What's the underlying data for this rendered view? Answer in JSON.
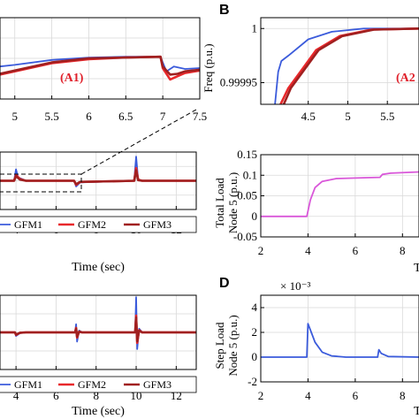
{
  "colors": {
    "gfm1": "#3b5bdb",
    "gfm2": "#e8282b",
    "gfm3": "#a02020",
    "load": "#d957d9",
    "step": "#3b5bdb"
  },
  "panel_labels": {
    "b": "B",
    "d": "D"
  },
  "chart_data": [
    {
      "id": "A1",
      "type": "line",
      "tag": "(A1)",
      "x": {
        "ticks": [
          "5",
          "5.5",
          "6",
          "6.5",
          "7",
          "7.5"
        ],
        "range": [
          4.8,
          7.5
        ]
      },
      "y": {
        "ticks": [],
        "range": [
          0,
          1
        ]
      },
      "grid": true,
      "series": [
        {
          "name": "GFM1",
          "points": [
            [
              4.8,
              0.4
            ],
            [
              5.0,
              0.42
            ],
            [
              5.5,
              0.48
            ],
            [
              6.0,
              0.51
            ],
            [
              6.5,
              0.52
            ],
            [
              6.97,
              0.52
            ],
            [
              7.0,
              0.45
            ],
            [
              7.05,
              0.34
            ],
            [
              7.15,
              0.4
            ],
            [
              7.3,
              0.37
            ],
            [
              7.5,
              0.38
            ]
          ]
        },
        {
          "name": "GFM2",
          "points": [
            [
              4.8,
              0.3
            ],
            [
              5.0,
              0.34
            ],
            [
              5.5,
              0.44
            ],
            [
              6.0,
              0.49
            ],
            [
              6.5,
              0.51
            ],
            [
              6.97,
              0.52
            ],
            [
              7.0,
              0.38
            ],
            [
              7.1,
              0.24
            ],
            [
              7.2,
              0.28
            ],
            [
              7.3,
              0.32
            ],
            [
              7.5,
              0.35
            ]
          ]
        },
        {
          "name": "GFM3",
          "points": [
            [
              4.8,
              0.31
            ],
            [
              5.0,
              0.35
            ],
            [
              5.5,
              0.45
            ],
            [
              6.0,
              0.5
            ],
            [
              6.5,
              0.51
            ],
            [
              6.97,
              0.52
            ],
            [
              7.0,
              0.4
            ],
            [
              7.1,
              0.3
            ],
            [
              7.2,
              0.31
            ],
            [
              7.3,
              0.34
            ],
            [
              7.5,
              0.36
            ]
          ]
        }
      ]
    },
    {
      "id": "A2",
      "type": "line",
      "tag": "(A2",
      "ylabel": "Freq (p.u.)",
      "x": {
        "ticks": [
          "4.5",
          "5",
          "5.5"
        ],
        "range": [
          3.9,
          5.9
        ]
      },
      "y": {
        "ticks": [
          "1",
          "0.99995"
        ],
        "tick_values": [
          1.0,
          0.99995
        ],
        "range": [
          0.99993,
          1.00001
        ]
      },
      "grid": true,
      "series": [
        {
          "name": "GFM1",
          "points": [
            [
              4.08,
              0.99993
            ],
            [
              4.12,
              0.99996
            ],
            [
              4.16,
              0.99997
            ],
            [
              4.25,
              0.999975
            ],
            [
              4.5,
              0.99999
            ],
            [
              4.8,
              0.999997
            ],
            [
              5.2,
              1.0
            ],
            [
              5.9,
              1.0
            ]
          ]
        },
        {
          "name": "GFM2",
          "points": [
            [
              4.15,
              0.99993
            ],
            [
              4.25,
              0.999945
            ],
            [
              4.4,
              0.99996
            ],
            [
              4.6,
              0.99998
            ],
            [
              4.9,
              0.999993
            ],
            [
              5.3,
              0.999999
            ],
            [
              5.9,
              1.0
            ]
          ]
        },
        {
          "name": "GFM3",
          "points": [
            [
              4.19,
              0.99993
            ],
            [
              4.28,
              0.999945
            ],
            [
              4.43,
              0.99996
            ],
            [
              4.63,
              0.99998
            ],
            [
              4.93,
              0.999993
            ],
            [
              5.33,
              0.999999
            ],
            [
              5.9,
              1.0
            ]
          ]
        }
      ]
    },
    {
      "id": "A",
      "type": "line",
      "xlabel": "Time (sec)",
      "x": {
        "ticks": [
          "4",
          "6",
          "8",
          "10",
          "12"
        ],
        "range": [
          3.2,
          13
        ]
      },
      "y": {
        "ticks": [],
        "range": [
          0,
          1
        ]
      },
      "grid": true,
      "legend": [
        "GFM1",
        "GFM2",
        "GFM3"
      ],
      "series": [
        {
          "name": "GFM1",
          "points": [
            [
              3.2,
              0.5
            ],
            [
              3.9,
              0.5
            ],
            [
              4.0,
              0.7
            ],
            [
              4.1,
              0.56
            ],
            [
              4.5,
              0.5
            ],
            [
              6.9,
              0.5
            ],
            [
              7.0,
              0.4
            ],
            [
              7.2,
              0.47
            ],
            [
              9.9,
              0.5
            ],
            [
              10.0,
              0.92
            ],
            [
              10.1,
              0.52
            ],
            [
              10.3,
              0.5
            ],
            [
              13,
              0.5
            ]
          ]
        },
        {
          "name": "GFM2",
          "points": [
            [
              3.2,
              0.5
            ],
            [
              3.9,
              0.5
            ],
            [
              4.0,
              0.6
            ],
            [
              4.2,
              0.53
            ],
            [
              4.5,
              0.5
            ],
            [
              6.9,
              0.5
            ],
            [
              7.0,
              0.43
            ],
            [
              7.2,
              0.48
            ],
            [
              9.9,
              0.5
            ],
            [
              10.0,
              0.72
            ],
            [
              10.1,
              0.52
            ],
            [
              10.3,
              0.5
            ],
            [
              13,
              0.5
            ]
          ]
        },
        {
          "name": "GFM3",
          "points": [
            [
              3.2,
              0.5
            ],
            [
              3.9,
              0.5
            ],
            [
              4.0,
              0.58
            ],
            [
              4.2,
              0.52
            ],
            [
              4.5,
              0.5
            ],
            [
              6.9,
              0.5
            ],
            [
              7.0,
              0.44
            ],
            [
              7.2,
              0.48
            ],
            [
              9.9,
              0.5
            ],
            [
              10.0,
              0.68
            ],
            [
              10.1,
              0.51
            ],
            [
              10.3,
              0.5
            ],
            [
              13,
              0.5
            ]
          ]
        }
      ]
    },
    {
      "id": "C",
      "type": "line",
      "ylabel_lines": [
        "Total Load",
        "Node 5 (p.u.)"
      ],
      "x": {
        "ticks": [
          "2",
          "4",
          "6",
          "8"
        ],
        "range": [
          2,
          8.7
        ]
      },
      "y": {
        "ticks": [
          "0.15",
          "0.1",
          "0.05",
          "0",
          "-0.05"
        ],
        "tick_values": [
          0.15,
          0.1,
          0.05,
          0,
          -0.05
        ],
        "range": [
          -0.05,
          0.15
        ]
      },
      "xlabel": "Tim",
      "grid": true,
      "series": [
        {
          "name": "load",
          "points": [
            [
              2,
              0
            ],
            [
              3.95,
              0
            ],
            [
              4.1,
              0.04
            ],
            [
              4.3,
              0.07
            ],
            [
              4.6,
              0.085
            ],
            [
              5.2,
              0.092
            ],
            [
              6.5,
              0.094
            ],
            [
              7.05,
              0.095
            ],
            [
              7.15,
              0.102
            ],
            [
              7.5,
              0.105
            ],
            [
              8.7,
              0.108
            ]
          ]
        }
      ]
    },
    {
      "id": "B",
      "type": "line",
      "xlabel": "Time (sec)",
      "x": {
        "ticks": [
          "4",
          "6",
          "8",
          "10",
          "12"
        ],
        "range": [
          3.2,
          13
        ]
      },
      "y": {
        "ticks": [],
        "range": [
          -1,
          1
        ]
      },
      "grid": true,
      "legend": [
        "GFM1",
        "GFM2",
        "GFM3"
      ],
      "series": [
        {
          "name": "GFM1",
          "points": [
            [
              3.2,
              0.0
            ],
            [
              3.95,
              0.0
            ],
            [
              4.0,
              -0.1
            ],
            [
              4.2,
              -0.02
            ],
            [
              4.5,
              0.0
            ],
            [
              6.95,
              0.0
            ],
            [
              7.0,
              0.22
            ],
            [
              7.05,
              -0.25
            ],
            [
              7.15,
              0.05
            ],
            [
              7.3,
              0.0
            ],
            [
              9.95,
              0.0
            ],
            [
              10.0,
              0.95
            ],
            [
              10.05,
              -0.45
            ],
            [
              10.15,
              0.1
            ],
            [
              10.3,
              0.0
            ],
            [
              13,
              0.0
            ]
          ]
        },
        {
          "name": "GFM2",
          "points": [
            [
              3.2,
              0.0
            ],
            [
              3.95,
              0.0
            ],
            [
              4.0,
              -0.07
            ],
            [
              4.2,
              -0.01
            ],
            [
              4.5,
              0.0
            ],
            [
              6.95,
              0.0
            ],
            [
              7.0,
              0.12
            ],
            [
              7.05,
              -0.14
            ],
            [
              7.15,
              0.02
            ],
            [
              7.3,
              0.0
            ],
            [
              9.95,
              0.0
            ],
            [
              10.0,
              0.45
            ],
            [
              10.05,
              -0.28
            ],
            [
              10.15,
              0.06
            ],
            [
              10.3,
              0.0
            ],
            [
              13,
              0.0
            ]
          ]
        },
        {
          "name": "GFM3",
          "points": [
            [
              3.2,
              0.0
            ],
            [
              3.95,
              0.0
            ],
            [
              4.0,
              -0.06
            ],
            [
              4.2,
              -0.01
            ],
            [
              4.5,
              0.0
            ],
            [
              6.95,
              0.0
            ],
            [
              7.0,
              0.1
            ],
            [
              7.05,
              -0.12
            ],
            [
              7.15,
              0.02
            ],
            [
              7.3,
              0.0
            ],
            [
              9.95,
              0.0
            ],
            [
              10.0,
              0.4
            ],
            [
              10.05,
              -0.24
            ],
            [
              10.15,
              0.05
            ],
            [
              10.3,
              0.0
            ],
            [
              13,
              0.0
            ]
          ]
        }
      ]
    },
    {
      "id": "D",
      "type": "line",
      "ylabel_lines": [
        "Step Load",
        "Node 5 (p.u.)"
      ],
      "y_exponent": "× 10⁻³",
      "x": {
        "ticks": [
          "2",
          "4",
          "6",
          "8"
        ],
        "range": [
          2,
          8.7
        ]
      },
      "y": {
        "ticks": [
          "4",
          "2",
          "0",
          "-2"
        ],
        "tick_values": [
          4,
          2,
          0,
          -2
        ],
        "range": [
          -2,
          5
        ]
      },
      "xlabel": "Tim",
      "grid": true,
      "series": [
        {
          "name": "step",
          "points": [
            [
              2,
              0
            ],
            [
              3.95,
              0
            ],
            [
              4.0,
              2.7
            ],
            [
              4.1,
              2.2
            ],
            [
              4.3,
              1.2
            ],
            [
              4.6,
              0.4
            ],
            [
              5.0,
              0.1
            ],
            [
              5.6,
              0
            ],
            [
              6.95,
              0
            ],
            [
              7.0,
              0.6
            ],
            [
              7.1,
              0.3
            ],
            [
              7.4,
              0.05
            ],
            [
              8.7,
              0
            ]
          ]
        }
      ]
    }
  ]
}
